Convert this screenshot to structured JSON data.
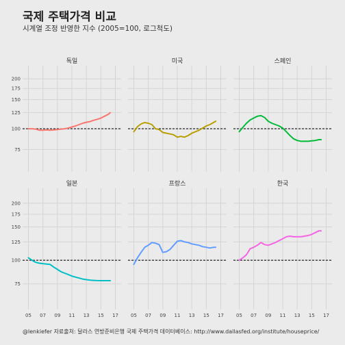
{
  "title": "국제 주택가격 비교",
  "subtitle": "시계열 조정 반영한 지수 (2005=100, 로그척도)",
  "caption": "@lenkiefer 자료출처: 달라스 연방준비은행 국제 주택가격 데이터베이스: http://www.dallasfed.org/institute/houseprice/",
  "chart_data": {
    "type": "line",
    "facets": 6,
    "layout": "2 rows x 3 columns",
    "yscale": "log",
    "ylim": [
      55,
      240
    ],
    "yticks": [
      75,
      100,
      125,
      150,
      175,
      200
    ],
    "ytick_labels": [
      "75",
      "100",
      "125",
      "150",
      "175",
      "200"
    ],
    "xlim": [
      2004.2,
      2017.8
    ],
    "xticks": [
      2005,
      2007,
      2009,
      2011,
      2013,
      2015,
      2017
    ],
    "xtick_labels": [
      "05",
      "07",
      "09",
      "11",
      "13",
      "15",
      "17"
    ],
    "reference_line": 100,
    "grid": true,
    "legend": "none",
    "series": [
      {
        "name": "독일",
        "color": "#f8766d",
        "x": [
          2005,
          2005.5,
          2006,
          2006.5,
          2007,
          2007.5,
          2008,
          2008.5,
          2009,
          2009.5,
          2010,
          2010.5,
          2011,
          2011.5,
          2012,
          2012.5,
          2013,
          2013.5,
          2014,
          2014.5,
          2015,
          2015.5,
          2016,
          2016.3
        ],
        "y": [
          100,
          100,
          99.5,
          98,
          98,
          98.5,
          98,
          98.5,
          99,
          99.5,
          100,
          101,
          102.5,
          104,
          106,
          108,
          109.5,
          110.5,
          112.5,
          114,
          116,
          119,
          122,
          125
        ]
      },
      {
        "name": "미국",
        "color": "#b79f00",
        "x": [
          2005,
          2005.5,
          2006,
          2006.5,
          2007,
          2007.5,
          2008,
          2008.5,
          2009,
          2009.5,
          2010,
          2010.5,
          2011,
          2011.5,
          2012,
          2012.5,
          2013,
          2013.5,
          2014,
          2014.5,
          2015,
          2015.5,
          2016,
          2016.3
        ],
        "y": [
          96,
          103,
          107,
          109,
          108,
          106,
          100,
          99,
          95,
          94,
          93,
          92,
          89,
          90,
          89,
          91,
          94,
          96,
          98,
          101,
          104,
          106,
          109,
          111
        ]
      },
      {
        "name": "스페인",
        "color": "#00ba38",
        "x": [
          2005,
          2005.5,
          2006,
          2006.5,
          2007,
          2007.5,
          2008,
          2008.5,
          2009,
          2009.5,
          2010,
          2010.5,
          2011,
          2011.5,
          2012,
          2012.5,
          2013,
          2013.5,
          2014,
          2014.5,
          2015,
          2015.5,
          2016,
          2016.3
        ],
        "y": [
          96,
          102,
          108,
          113,
          116,
          119,
          120,
          117,
          111,
          108,
          106,
          104,
          101,
          96,
          91,
          87,
          85,
          84,
          84,
          84,
          84.5,
          85,
          86,
          86
        ]
      },
      {
        "name": "일본",
        "color": "#00bfc4",
        "x": [
          2005,
          2005.5,
          2006,
          2006.5,
          2007,
          2007.5,
          2008,
          2008.5,
          2009,
          2009.5,
          2010,
          2010.5,
          2011,
          2011.5,
          2012,
          2012.5,
          2013,
          2013.5,
          2014,
          2014.5,
          2015,
          2015.5,
          2016,
          2016.3
        ],
        "y": [
          103,
          100,
          97.5,
          96.5,
          96,
          95.5,
          95,
          92,
          89.5,
          87,
          85.5,
          84,
          82.5,
          81.5,
          80.5,
          79.5,
          79,
          78.5,
          78.3,
          78.1,
          78,
          78,
          78,
          78
        ]
      },
      {
        "name": "프랑스",
        "color": "#619cff",
        "x": [
          2005,
          2005.5,
          2006,
          2006.5,
          2007,
          2007.5,
          2008,
          2008.5,
          2009,
          2009.5,
          2010,
          2010.5,
          2011,
          2011.5,
          2012,
          2012.5,
          2013,
          2013.5,
          2014,
          2014.5,
          2015,
          2015.5,
          2016,
          2016.3
        ],
        "y": [
          95,
          103,
          110,
          117,
          120,
          124,
          123,
          121,
          110,
          111,
          114,
          120,
          126,
          127,
          125,
          124,
          122,
          121,
          120,
          118,
          117,
          116,
          117,
          117
        ]
      },
      {
        "name": "한국",
        "color": "#f564e3",
        "x": [
          2005,
          2005.5,
          2006,
          2006.5,
          2007,
          2007.5,
          2008,
          2008.5,
          2009,
          2009.5,
          2010,
          2010.5,
          2011,
          2011.5,
          2012,
          2012.5,
          2013,
          2013.5,
          2014,
          2014.5,
          2015,
          2015.5,
          2016,
          2016.3
        ],
        "y": [
          100,
          103,
          107,
          115,
          117,
          120,
          124,
          121,
          120,
          122,
          124,
          127,
          130,
          133,
          134,
          133,
          133,
          133,
          134,
          135,
          137,
          140,
          143,
          143
        ]
      }
    ]
  }
}
